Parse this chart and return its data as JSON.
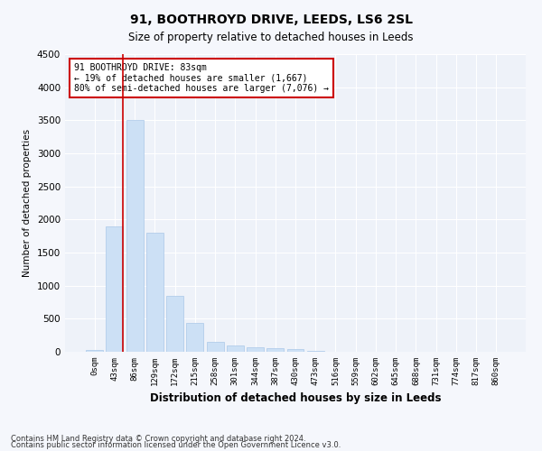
{
  "title": "91, BOOTHROYD DRIVE, LEEDS, LS6 2SL",
  "subtitle": "Size of property relative to detached houses in Leeds",
  "xlabel": "Distribution of detached houses by size in Leeds",
  "ylabel": "Number of detached properties",
  "bar_color": "#cce0f5",
  "bar_edge_color": "#aac8e8",
  "background_color": "#eef2f9",
  "grid_color": "#ffffff",
  "categories": [
    "0sqm",
    "43sqm",
    "86sqm",
    "129sqm",
    "172sqm",
    "215sqm",
    "258sqm",
    "301sqm",
    "344sqm",
    "387sqm",
    "430sqm",
    "473sqm",
    "516sqm",
    "559sqm",
    "602sqm",
    "645sqm",
    "688sqm",
    "731sqm",
    "774sqm",
    "817sqm",
    "860sqm"
  ],
  "values": [
    30,
    1900,
    3500,
    1800,
    850,
    440,
    150,
    100,
    75,
    55,
    35,
    20,
    0,
    0,
    0,
    0,
    0,
    0,
    0,
    0,
    0
  ],
  "ylim": [
    0,
    4500
  ],
  "yticks": [
    0,
    500,
    1000,
    1500,
    2000,
    2500,
    3000,
    3500,
    4000,
    4500
  ],
  "annotation_text": "91 BOOTHROYD DRIVE: 83sqm\n← 19% of detached houses are smaller (1,667)\n80% of semi-detached houses are larger (7,076) →",
  "annotation_box_color": "#ffffff",
  "annotation_box_edge": "#cc0000",
  "property_line_color": "#cc0000",
  "footnote1": "Contains HM Land Registry data © Crown copyright and database right 2024.",
  "footnote2": "Contains public sector information licensed under the Open Government Licence v3.0."
}
